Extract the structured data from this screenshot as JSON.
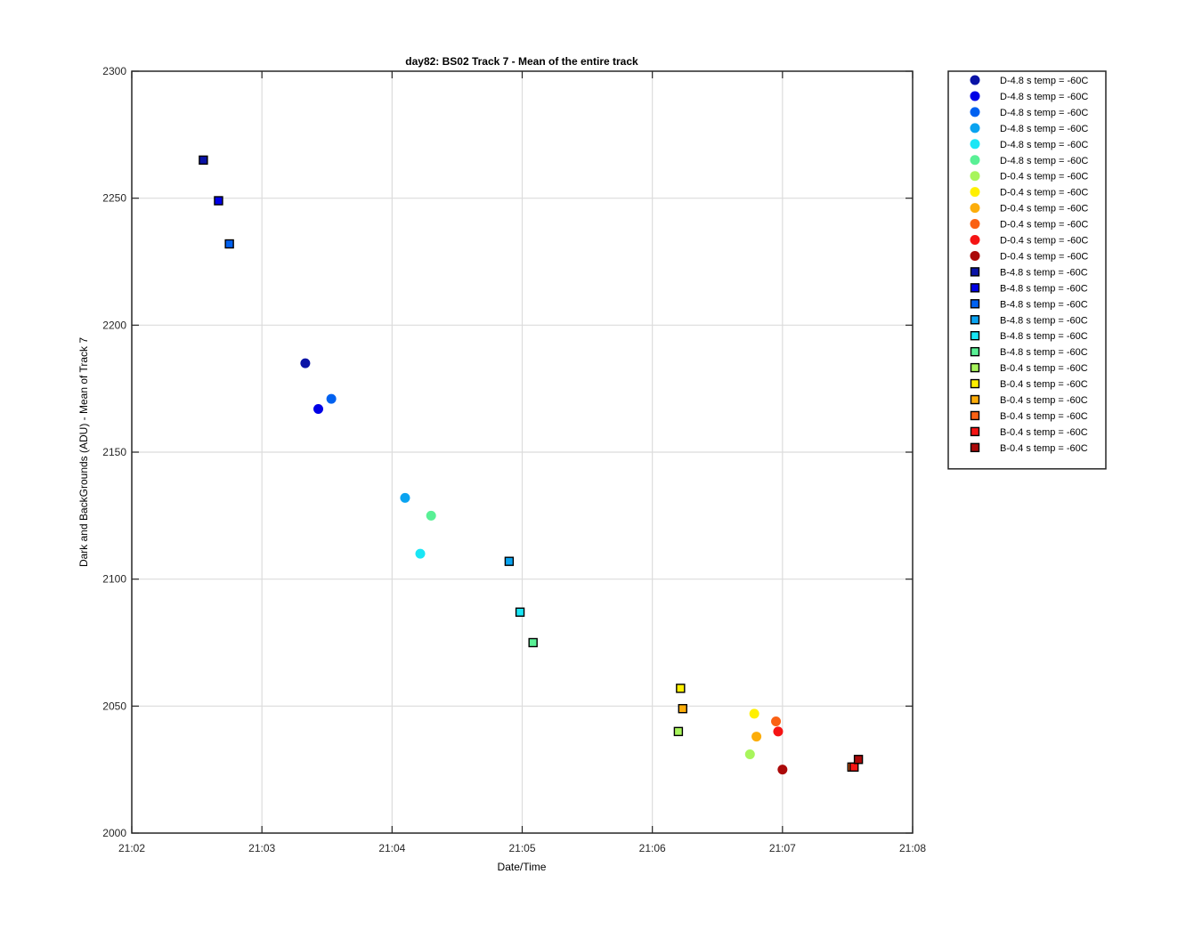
{
  "chart_data": {
    "type": "scatter",
    "title": "day82: BS02  Track 7 - Mean of the entire track",
    "xlabel": "Date/Time",
    "ylabel": "Dark and BackGrounds (ADU) - Mean of Track 7",
    "xlim": [
      "21:02",
      "21:08"
    ],
    "ylim": [
      2000,
      2300
    ],
    "x_ticks": [
      "21:02",
      "21:03",
      "21:04",
      "21:05",
      "21:06",
      "21:07",
      "21:08"
    ],
    "y_ticks": [
      "2000",
      "2050",
      "2100",
      "2150",
      "2200",
      "2250",
      "2300"
    ],
    "grid": true,
    "legend_position": "outside-right",
    "series": [
      {
        "name": "D-4.8 s temp = -60C",
        "marker": "circle",
        "color": "#0a13a6",
        "x": [
          "21:03:20"
        ],
        "y": [
          2185
        ]
      },
      {
        "name": "D-4.8 s temp = -60C",
        "marker": "circle",
        "color": "#0000e6",
        "x": [
          "21:03:26"
        ],
        "y": [
          2167
        ]
      },
      {
        "name": "D-4.8 s temp = -60C",
        "marker": "circle",
        "color": "#0061f0",
        "x": [
          "21:03:32"
        ],
        "y": [
          2171
        ]
      },
      {
        "name": "D-4.8 s temp = -60C",
        "marker": "circle",
        "color": "#0aa3f0",
        "x": [
          "21:04:06"
        ],
        "y": [
          2132
        ]
      },
      {
        "name": "D-4.8 s temp = -60C",
        "marker": "circle",
        "color": "#1ae6f5",
        "x": [
          "21:04:13"
        ],
        "y": [
          2110
        ]
      },
      {
        "name": "D-4.8 s temp = -60C",
        "marker": "circle",
        "color": "#59f095",
        "x": [
          "21:04:18"
        ],
        "y": [
          2125
        ]
      },
      {
        "name": "D-0.4 s temp = -60C",
        "marker": "circle",
        "color": "#a8f55c",
        "x": [
          "21:06:45"
        ],
        "y": [
          2031
        ]
      },
      {
        "name": "D-0.4 s temp = -60C",
        "marker": "circle",
        "color": "#fff000",
        "x": [
          "21:06:47"
        ],
        "y": [
          2047
        ]
      },
      {
        "name": "D-0.4 s temp = -60C",
        "marker": "circle",
        "color": "#fcad0a",
        "x": [
          "21:06:48"
        ],
        "y": [
          2038
        ]
      },
      {
        "name": "D-0.4 s temp = -60C",
        "marker": "circle",
        "color": "#fa6114",
        "x": [
          "21:06:57"
        ],
        "y": [
          2044
        ]
      },
      {
        "name": "D-0.4 s temp = -60C",
        "marker": "circle",
        "color": "#f51414",
        "x": [
          "21:06:58"
        ],
        "y": [
          2040
        ]
      },
      {
        "name": "D-0.4 s temp = -60C",
        "marker": "circle",
        "color": "#ab0a0a",
        "x": [
          "21:07:00"
        ],
        "y": [
          2025
        ]
      },
      {
        "name": "B-4.8 s temp = -60C",
        "marker": "square",
        "color": "#0a13a6",
        "x": [
          "21:02:33"
        ],
        "y": [
          2265
        ]
      },
      {
        "name": "B-4.8 s temp = -60C",
        "marker": "square",
        "color": "#0000e6",
        "x": [
          "21:02:40"
        ],
        "y": [
          2249
        ]
      },
      {
        "name": "B-4.8 s temp = -60C",
        "marker": "square",
        "color": "#0061f0",
        "x": [
          "21:02:45"
        ],
        "y": [
          2232
        ]
      },
      {
        "name": "B-4.8 s temp = -60C",
        "marker": "square",
        "color": "#0aa3f0",
        "x": [
          "21:04:54"
        ],
        "y": [
          2107
        ]
      },
      {
        "name": "B-4.8 s temp = -60C",
        "marker": "square",
        "color": "#1ae6f5",
        "x": [
          "21:04:59"
        ],
        "y": [
          2087
        ]
      },
      {
        "name": "B-4.8 s temp = -60C",
        "marker": "square",
        "color": "#59f095",
        "x": [
          "21:05:05"
        ],
        "y": [
          2075
        ]
      },
      {
        "name": "B-0.4 s temp = -60C",
        "marker": "square",
        "color": "#a8f55c",
        "x": [
          "21:06:12"
        ],
        "y": [
          2040
        ]
      },
      {
        "name": "B-0.4 s temp = -60C",
        "marker": "square",
        "color": "#fff000",
        "x": [
          "21:06:13"
        ],
        "y": [
          2057
        ]
      },
      {
        "name": "B-0.4 s temp = -60C",
        "marker": "square",
        "color": "#fcad0a",
        "x": [
          "21:06:14"
        ],
        "y": [
          2049
        ]
      },
      {
        "name": "B-0.4 s temp = -60C",
        "marker": "square",
        "color": "#fa6114",
        "x": [
          "21:07:32"
        ],
        "y": [
          2026
        ]
      },
      {
        "name": "B-0.4 s temp = -60C",
        "marker": "square",
        "color": "#f51414",
        "x": [
          "21:07:33"
        ],
        "y": [
          2026
        ]
      },
      {
        "name": "B-0.4 s temp = -60C",
        "marker": "square",
        "color": "#ab0a0a",
        "x": [
          "21:07:35"
        ],
        "y": [
          2029
        ]
      }
    ]
  }
}
